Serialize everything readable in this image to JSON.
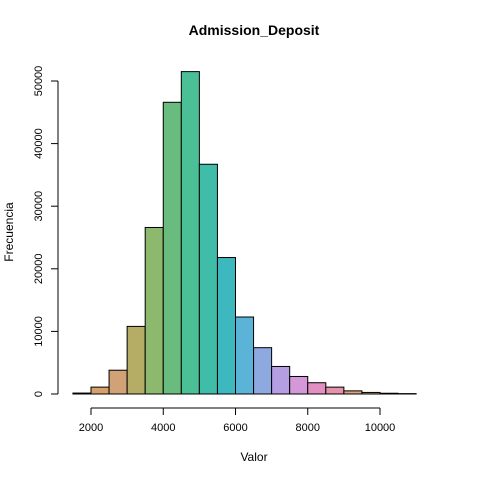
{
  "chart_data": {
    "type": "bar",
    "title": "Admission_Deposit",
    "xlabel": "Valor",
    "ylabel": "Frecuencia",
    "bin_edges": [
      1500,
      2000,
      2500,
      3000,
      3500,
      4000,
      4500,
      5000,
      5500,
      6000,
      6500,
      7000,
      7500,
      8000,
      8500,
      9000,
      9500,
      10000,
      10500,
      11000
    ],
    "values": [
      150,
      1100,
      3800,
      10800,
      26600,
      46600,
      51500,
      36700,
      21800,
      12300,
      7400,
      4400,
      2800,
      1800,
      1100,
      500,
      250,
      120,
      60
    ],
    "colors": [
      "#E495A5",
      "#D4A06C",
      "#D2A277",
      "#B5AD66",
      "#8DB96F",
      "#6ABC7E",
      "#4BBF95",
      "#3FBDA8",
      "#3DB8BE",
      "#5BB3D8",
      "#8EA9E0",
      "#B59EE2",
      "#D498D8",
      "#E290C1",
      "#E593AA",
      "#DDA37B",
      "#C7A76C",
      "#ABB065",
      "#86B875"
    ],
    "xlim": [
      1500,
      11000
    ],
    "ylim": [
      0,
      50000
    ],
    "x_ticks": [
      2000,
      4000,
      6000,
      8000,
      10000
    ],
    "y_ticks": [
      0,
      10000,
      20000,
      30000,
      40000,
      50000
    ],
    "grid": false,
    "legend": false
  }
}
